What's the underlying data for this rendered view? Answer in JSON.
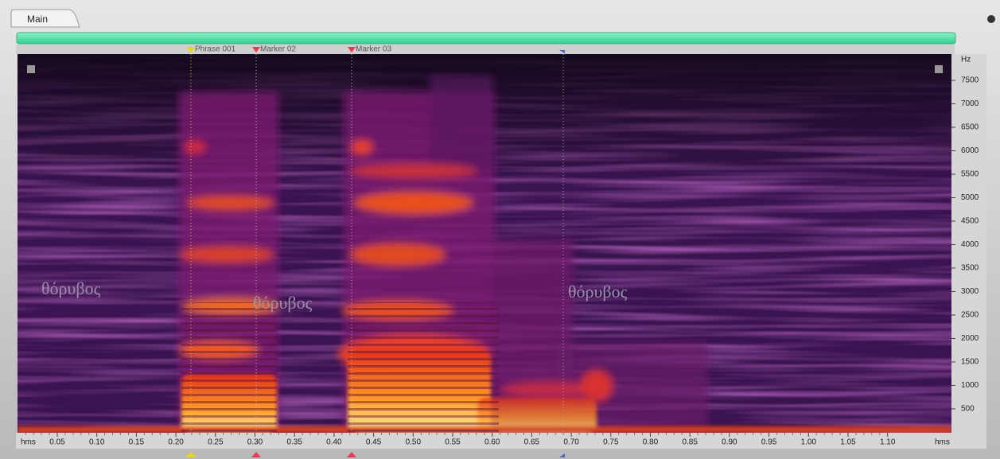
{
  "tab": {
    "title": "Main"
  },
  "markers": [
    {
      "label": "Phrase 001"
    },
    {
      "label": "Marker 02"
    },
    {
      "label": "Marker 03"
    }
  ],
  "annotations": [
    "θόρυβος",
    "θόρυβος",
    "θόρυβος"
  ],
  "x_axis": {
    "unit_left": "hms",
    "unit_right": "hms",
    "ticks": [
      "0.05",
      "0.10",
      "0.15",
      "0.20",
      "0.25",
      "0.30",
      "0.35",
      "0.40",
      "0.45",
      "0.50",
      "0.55",
      "0.60",
      "0.65",
      "0.70",
      "0.75",
      "0.80",
      "0.85",
      "0.90",
      "0.95",
      "1.00",
      "1.05",
      "1.10"
    ]
  },
  "y_axis": {
    "unit": "Hz",
    "ticks": [
      "7500",
      "7000",
      "6500",
      "6000",
      "5500",
      "5000",
      "4500",
      "4000",
      "3500",
      "3000",
      "2500",
      "2000",
      "1500",
      "1000",
      "500"
    ]
  }
}
